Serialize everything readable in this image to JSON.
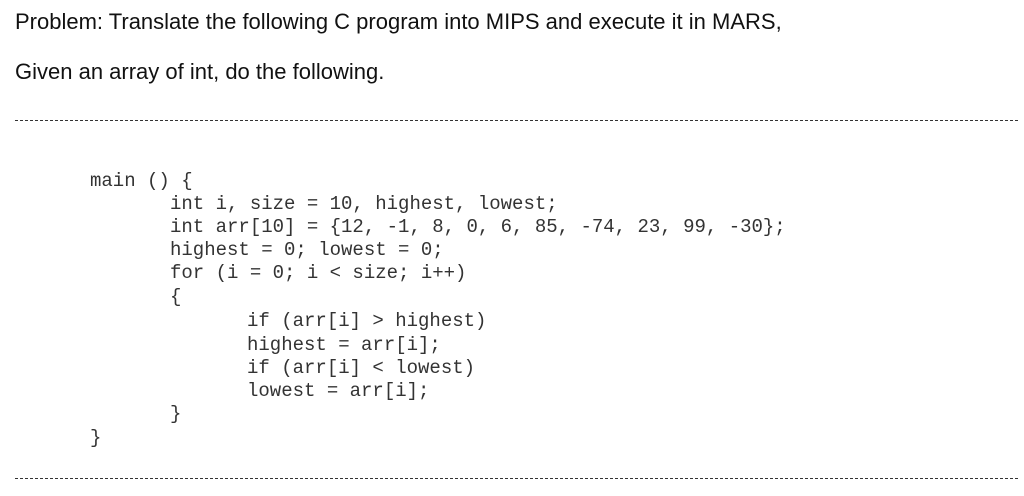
{
  "problem": {
    "line1": "Problem: Translate the following C program into MIPS and execute it in MARS,",
    "line2": "Given an array of int, do the following."
  },
  "code": [
    "main () {",
    "int i, size = 10, highest, lowest;",
    "int arr[10] = {12, -1, 8, 0, 6, 85, -74, 23, 99, -30};",
    "highest = 0; lowest = 0;",
    "for (i = 0; i < size; i++)",
    "{",
    "if (arr[i] > highest)",
    "highest = arr[i];",
    "if (arr[i] < lowest)",
    "lowest = arr[i];",
    "}",
    "}"
  ]
}
